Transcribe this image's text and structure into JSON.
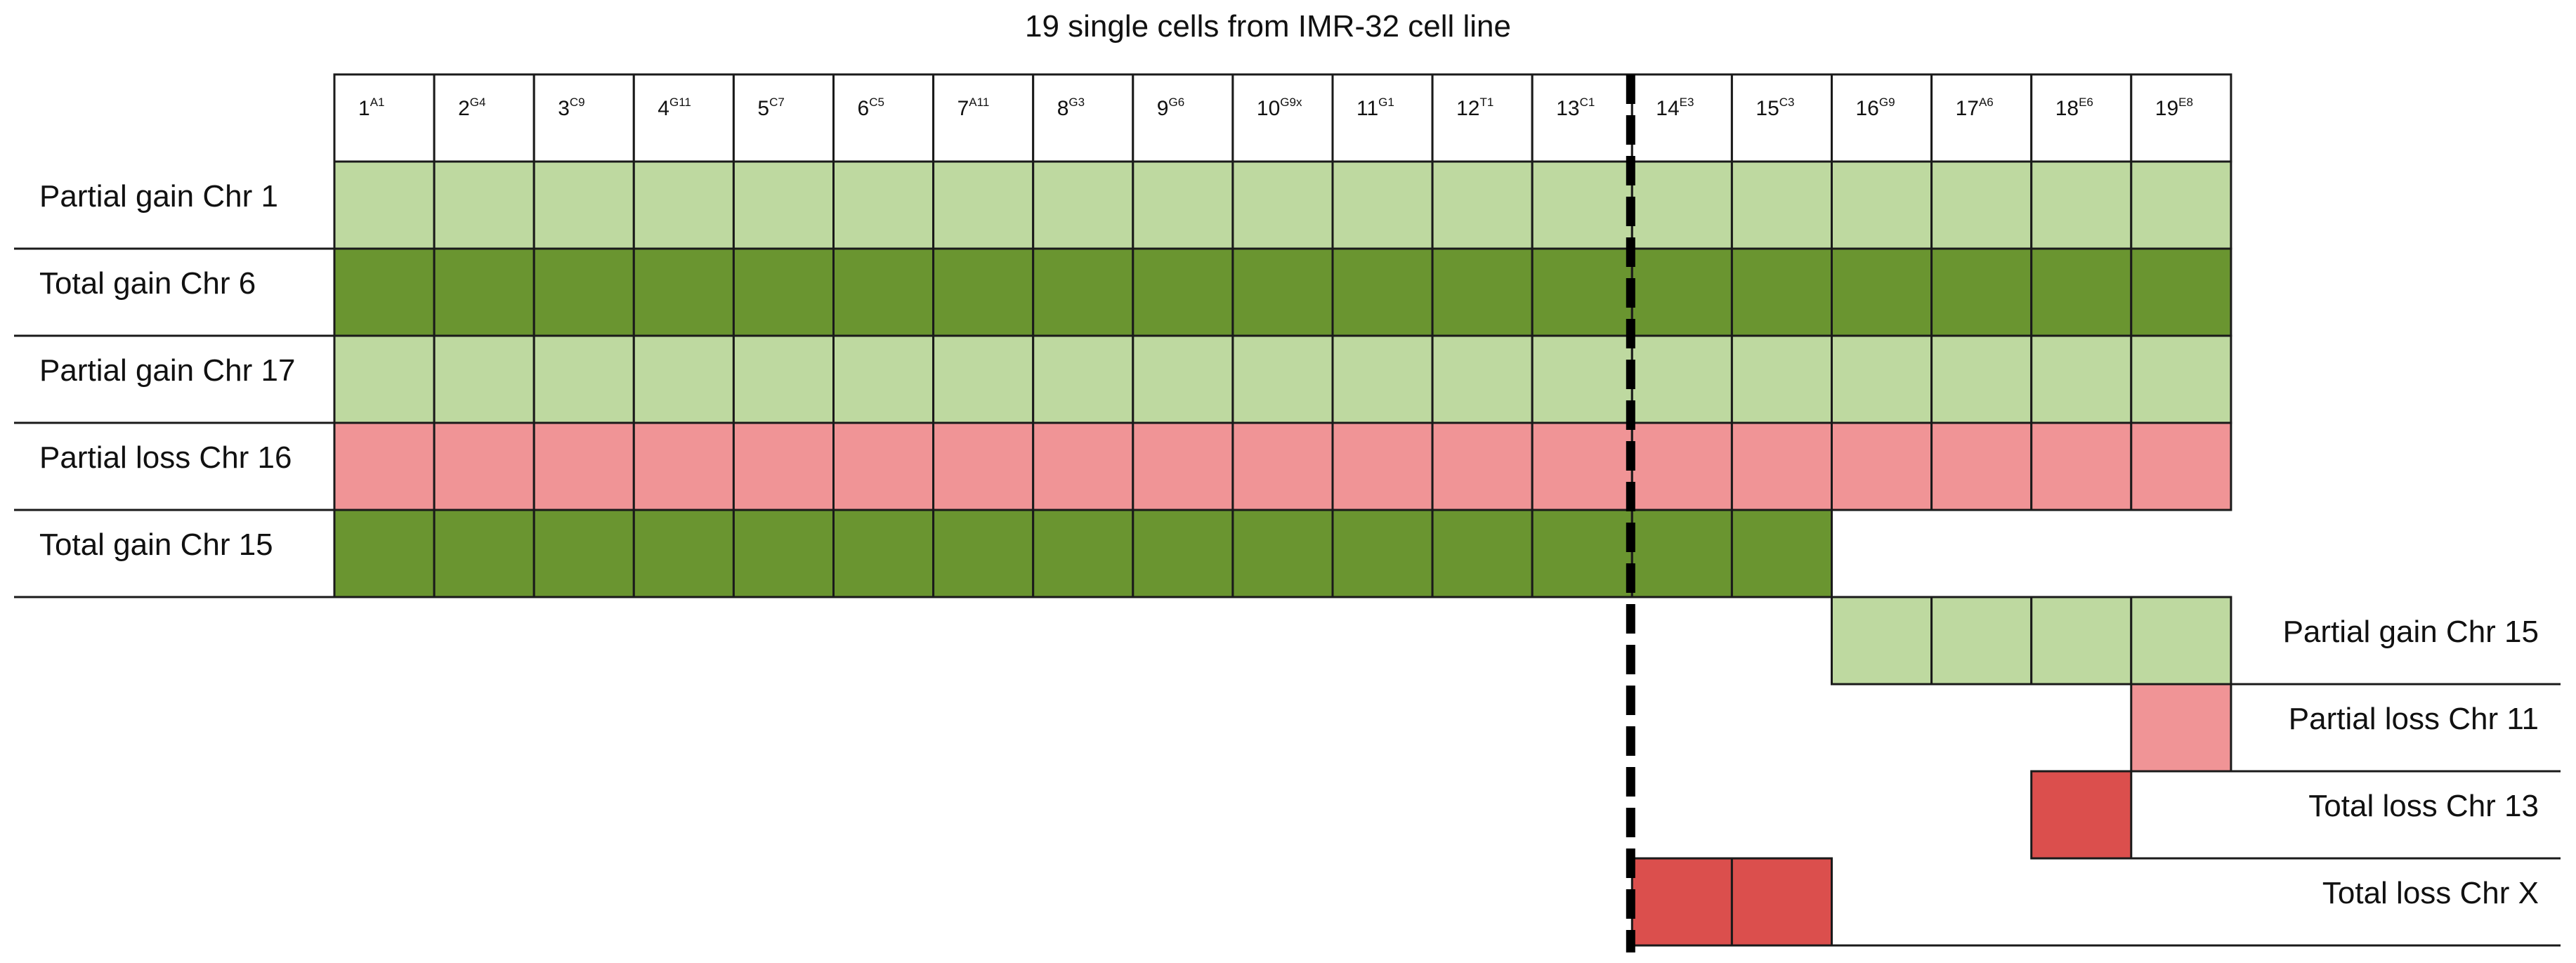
{
  "title": "19 single cells from IMR-32 cell line",
  "colors": {
    "partial_gain": "#bed9a0",
    "total_gain": "#6a9530",
    "partial_loss": "#f09496",
    "total_loss": "#db4f4d",
    "grid_line": "#1a1a1a",
    "divider": "#000000"
  },
  "cells": [
    {
      "num": "1",
      "sup": "A1"
    },
    {
      "num": "2",
      "sup": "G4"
    },
    {
      "num": "3",
      "sup": "C9"
    },
    {
      "num": "4",
      "sup": "G11"
    },
    {
      "num": "5",
      "sup": "C7"
    },
    {
      "num": "6",
      "sup": "C5"
    },
    {
      "num": "7",
      "sup": "A11"
    },
    {
      "num": "8",
      "sup": "G3"
    },
    {
      "num": "9",
      "sup": "G6"
    },
    {
      "num": "10",
      "sup": "G9x"
    },
    {
      "num": "11",
      "sup": "G1"
    },
    {
      "num": "12",
      "sup": "T1"
    },
    {
      "num": "13",
      "sup": "C1"
    },
    {
      "num": "14",
      "sup": "E3"
    },
    {
      "num": "15",
      "sup": "C3"
    },
    {
      "num": "16",
      "sup": "G9"
    },
    {
      "num": "17",
      "sup": "A6"
    },
    {
      "num": "18",
      "sup": "E6"
    },
    {
      "num": "19",
      "sup": "E8"
    }
  ],
  "rows": [
    {
      "label": "Partial gain Chr 1",
      "type": "partial_gain",
      "cells": [
        1,
        2,
        3,
        4,
        5,
        6,
        7,
        8,
        9,
        10,
        11,
        12,
        13,
        14,
        15,
        16,
        17,
        18,
        19
      ],
      "label_side": "left"
    },
    {
      "label": "Total gain Chr 6",
      "type": "total_gain",
      "cells": [
        1,
        2,
        3,
        4,
        5,
        6,
        7,
        8,
        9,
        10,
        11,
        12,
        13,
        14,
        15,
        16,
        17,
        18,
        19
      ],
      "label_side": "left"
    },
    {
      "label": "Partial gain Chr 17",
      "type": "partial_gain",
      "cells": [
        1,
        2,
        3,
        4,
        5,
        6,
        7,
        8,
        9,
        10,
        11,
        12,
        13,
        14,
        15,
        16,
        17,
        18,
        19
      ],
      "label_side": "left"
    },
    {
      "label": "Partial loss Chr 16",
      "type": "partial_loss",
      "cells": [
        1,
        2,
        3,
        4,
        5,
        6,
        7,
        8,
        9,
        10,
        11,
        12,
        13,
        14,
        15,
        16,
        17,
        18,
        19
      ],
      "label_side": "left"
    },
    {
      "label": "Total gain Chr 15",
      "type": "total_gain",
      "cells": [
        1,
        2,
        3,
        4,
        5,
        6,
        7,
        8,
        9,
        10,
        11,
        12,
        13,
        14,
        15
      ],
      "label_side": "left"
    },
    {
      "label": "Partial gain Chr 15",
      "type": "partial_gain",
      "cells": [
        16,
        17,
        18,
        19
      ],
      "label_side": "right"
    },
    {
      "label": "Partial loss Chr 11",
      "type": "partial_loss",
      "cells": [
        19
      ],
      "label_side": "right"
    },
    {
      "label": "Total loss Chr 13",
      "type": "total_loss",
      "cells": [
        18
      ],
      "label_side": "right"
    },
    {
      "label": "Total loss Chr X",
      "type": "total_loss",
      "cells": [
        14,
        15
      ],
      "label_side": "right"
    }
  ],
  "divider_after_cell": 13
}
